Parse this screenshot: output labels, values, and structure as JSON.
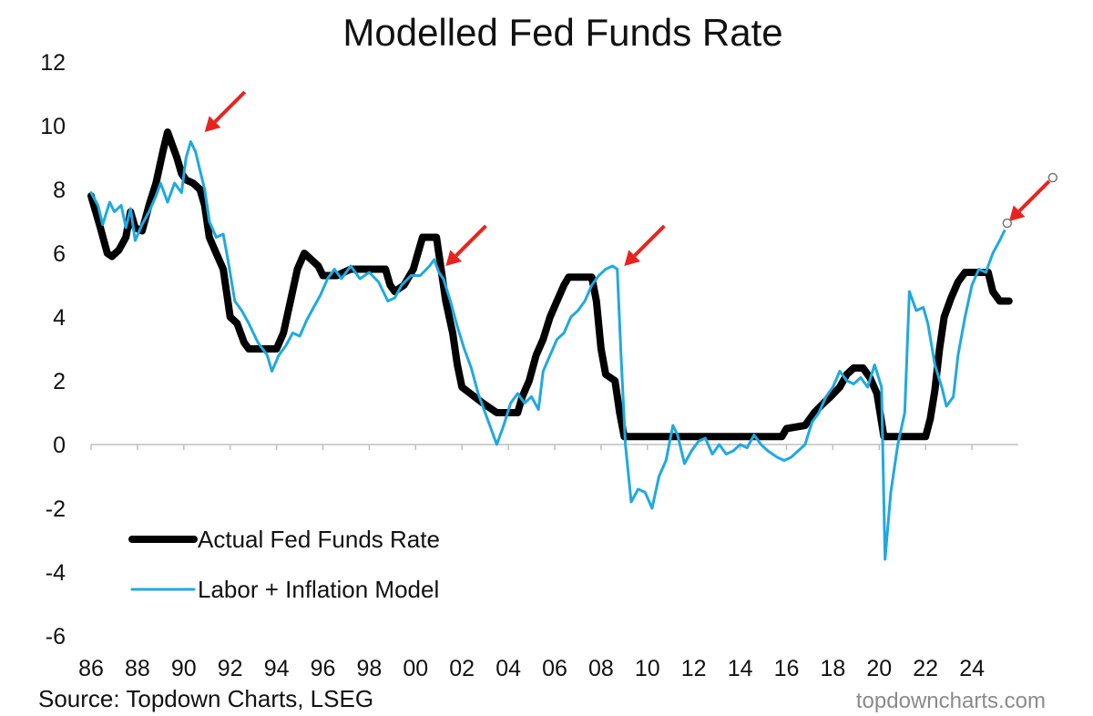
{
  "chart_data": {
    "type": "line",
    "title": "Modelled Fed Funds Rate",
    "xlabel": "",
    "ylabel": "",
    "xlim": [
      1986,
      2026
    ],
    "ylim": [
      -6,
      12
    ],
    "y_ticks": [
      12,
      10,
      8,
      6,
      4,
      2,
      0,
      -2,
      -4,
      -6
    ],
    "x_ticks": [
      {
        "year": 1986,
        "label": "86"
      },
      {
        "year": 1988,
        "label": "88"
      },
      {
        "year": 1990,
        "label": "90"
      },
      {
        "year": 1992,
        "label": "92"
      },
      {
        "year": 1994,
        "label": "94"
      },
      {
        "year": 1996,
        "label": "96"
      },
      {
        "year": 1998,
        "label": "98"
      },
      {
        "year": 2000,
        "label": "00"
      },
      {
        "year": 2002,
        "label": "02"
      },
      {
        "year": 2004,
        "label": "04"
      },
      {
        "year": 2006,
        "label": "06"
      },
      {
        "year": 2008,
        "label": "08"
      },
      {
        "year": 2010,
        "label": "10"
      },
      {
        "year": 2012,
        "label": "12"
      },
      {
        "year": 2014,
        "label": "14"
      },
      {
        "year": 2016,
        "label": "16"
      },
      {
        "year": 2018,
        "label": "18"
      },
      {
        "year": 2020,
        "label": "20"
      },
      {
        "year": 2022,
        "label": "22"
      },
      {
        "year": 2024,
        "label": "24"
      }
    ],
    "grid": false,
    "legend_position": "bottom-left",
    "series": [
      {
        "name": "Actual Fed Funds Rate",
        "color": "#000000",
        "points": [
          [
            1986.0,
            7.8
          ],
          [
            1986.4,
            6.8
          ],
          [
            1986.7,
            6.0
          ],
          [
            1986.9,
            5.9
          ],
          [
            1987.2,
            6.1
          ],
          [
            1987.5,
            6.5
          ],
          [
            1987.7,
            7.3
          ],
          [
            1987.9,
            6.8
          ],
          [
            1988.2,
            6.7
          ],
          [
            1988.5,
            7.5
          ],
          [
            1988.8,
            8.2
          ],
          [
            1989.1,
            9.2
          ],
          [
            1989.3,
            9.8
          ],
          [
            1989.5,
            9.4
          ],
          [
            1989.7,
            9.0
          ],
          [
            1989.9,
            8.5
          ],
          [
            1990.1,
            8.3
          ],
          [
            1990.4,
            8.2
          ],
          [
            1990.7,
            8.0
          ],
          [
            1990.9,
            7.5
          ],
          [
            1991.1,
            6.5
          ],
          [
            1991.4,
            6.0
          ],
          [
            1991.7,
            5.5
          ],
          [
            1992.0,
            4.0
          ],
          [
            1992.3,
            3.8
          ],
          [
            1992.6,
            3.2
          ],
          [
            1992.8,
            3.0
          ],
          [
            1993.5,
            3.0
          ],
          [
            1994.0,
            3.0
          ],
          [
            1994.3,
            3.5
          ],
          [
            1994.6,
            4.5
          ],
          [
            1994.9,
            5.5
          ],
          [
            1995.2,
            6.0
          ],
          [
            1995.5,
            5.8
          ],
          [
            1995.8,
            5.6
          ],
          [
            1996.0,
            5.3
          ],
          [
            1996.6,
            5.3
          ],
          [
            1997.2,
            5.5
          ],
          [
            1998.0,
            5.5
          ],
          [
            1998.7,
            5.5
          ],
          [
            1998.9,
            5.0
          ],
          [
            1999.1,
            4.8
          ],
          [
            1999.5,
            5.0
          ],
          [
            1999.9,
            5.5
          ],
          [
            2000.1,
            6.0
          ],
          [
            2000.3,
            6.5
          ],
          [
            2000.9,
            6.5
          ],
          [
            2001.1,
            5.5
          ],
          [
            2001.3,
            4.5
          ],
          [
            2001.6,
            3.5
          ],
          [
            2001.8,
            2.5
          ],
          [
            2002.0,
            1.8
          ],
          [
            2002.9,
            1.3
          ],
          [
            2003.5,
            1.0
          ],
          [
            2004.4,
            1.0
          ],
          [
            2004.6,
            1.5
          ],
          [
            2004.9,
            2.0
          ],
          [
            2005.2,
            2.8
          ],
          [
            2005.5,
            3.3
          ],
          [
            2005.8,
            4.0
          ],
          [
            2006.1,
            4.5
          ],
          [
            2006.4,
            5.0
          ],
          [
            2006.6,
            5.25
          ],
          [
            2007.6,
            5.25
          ],
          [
            2007.8,
            4.5
          ],
          [
            2008.0,
            3.0
          ],
          [
            2008.2,
            2.2
          ],
          [
            2008.6,
            2.0
          ],
          [
            2008.8,
            1.0
          ],
          [
            2009.0,
            0.25
          ],
          [
            2015.8,
            0.25
          ],
          [
            2016.0,
            0.5
          ],
          [
            2016.8,
            0.6
          ],
          [
            2017.2,
            1.0
          ],
          [
            2017.6,
            1.3
          ],
          [
            2017.9,
            1.5
          ],
          [
            2018.3,
            1.8
          ],
          [
            2018.6,
            2.2
          ],
          [
            2018.9,
            2.4
          ],
          [
            2019.3,
            2.4
          ],
          [
            2019.6,
            2.1
          ],
          [
            2019.9,
            1.6
          ],
          [
            2020.2,
            0.25
          ],
          [
            2022.0,
            0.25
          ],
          [
            2022.2,
            0.8
          ],
          [
            2022.4,
            1.7
          ],
          [
            2022.6,
            3.0
          ],
          [
            2022.8,
            4.0
          ],
          [
            2023.1,
            4.6
          ],
          [
            2023.4,
            5.1
          ],
          [
            2023.7,
            5.4
          ],
          [
            2024.7,
            5.4
          ],
          [
            2024.9,
            4.8
          ],
          [
            2025.2,
            4.5
          ],
          [
            2025.6,
            4.5
          ]
        ]
      },
      {
        "name": "Labor + Inflation Model",
        "color": "#1fa9e1",
        "points": [
          [
            1986.0,
            7.9
          ],
          [
            1986.3,
            7.5
          ],
          [
            1986.5,
            6.9
          ],
          [
            1986.8,
            7.6
          ],
          [
            1987.0,
            7.3
          ],
          [
            1987.3,
            7.5
          ],
          [
            1987.5,
            6.8
          ],
          [
            1987.7,
            7.4
          ],
          [
            1987.9,
            6.4
          ],
          [
            1988.2,
            6.9
          ],
          [
            1988.5,
            7.3
          ],
          [
            1988.8,
            7.8
          ],
          [
            1989.0,
            8.2
          ],
          [
            1989.3,
            7.6
          ],
          [
            1989.6,
            8.2
          ],
          [
            1989.9,
            7.9
          ],
          [
            1990.1,
            9.0
          ],
          [
            1990.3,
            9.5
          ],
          [
            1990.5,
            9.2
          ],
          [
            1990.7,
            8.6
          ],
          [
            1990.9,
            8.0
          ],
          [
            1991.1,
            7.0
          ],
          [
            1991.4,
            6.5
          ],
          [
            1991.7,
            6.6
          ],
          [
            1991.9,
            5.8
          ],
          [
            1992.2,
            4.5
          ],
          [
            1992.5,
            4.2
          ],
          [
            1992.8,
            3.8
          ],
          [
            1993.2,
            3.2
          ],
          [
            1993.6,
            2.8
          ],
          [
            1993.8,
            2.3
          ],
          [
            1994.1,
            2.8
          ],
          [
            1994.4,
            3.1
          ],
          [
            1994.7,
            3.5
          ],
          [
            1995.0,
            3.4
          ],
          [
            1995.3,
            3.9
          ],
          [
            1995.6,
            4.3
          ],
          [
            1995.9,
            4.7
          ],
          [
            1996.2,
            5.2
          ],
          [
            1996.5,
            5.5
          ],
          [
            1996.8,
            5.2
          ],
          [
            1997.2,
            5.6
          ],
          [
            1997.6,
            5.2
          ],
          [
            1998.0,
            5.4
          ],
          [
            1998.4,
            5.1
          ],
          [
            1998.8,
            4.5
          ],
          [
            1999.1,
            4.6
          ],
          [
            1999.4,
            5.0
          ],
          [
            1999.8,
            5.3
          ],
          [
            2000.2,
            5.3
          ],
          [
            2000.6,
            5.6
          ],
          [
            2000.8,
            5.8
          ],
          [
            2001.0,
            5.4
          ],
          [
            2001.2,
            5.2
          ],
          [
            2001.5,
            4.5
          ],
          [
            2001.8,
            3.7
          ],
          [
            2002.1,
            3.0
          ],
          [
            2002.4,
            2.4
          ],
          [
            2002.7,
            1.6
          ],
          [
            2003.0,
            1.0
          ],
          [
            2003.3,
            0.4
          ],
          [
            2003.5,
            0.0
          ],
          [
            2003.8,
            0.6
          ],
          [
            2004.1,
            1.3
          ],
          [
            2004.4,
            1.6
          ],
          [
            2004.7,
            1.3
          ],
          [
            2005.0,
            1.5
          ],
          [
            2005.3,
            1.1
          ],
          [
            2005.5,
            2.3
          ],
          [
            2005.8,
            2.8
          ],
          [
            2006.1,
            3.3
          ],
          [
            2006.4,
            3.5
          ],
          [
            2006.7,
            4.0
          ],
          [
            2007.0,
            4.2
          ],
          [
            2007.3,
            4.5
          ],
          [
            2007.6,
            5.0
          ],
          [
            2007.9,
            5.3
          ],
          [
            2008.2,
            5.5
          ],
          [
            2008.5,
            5.6
          ],
          [
            2008.7,
            5.5
          ],
          [
            2008.85,
            3.0
          ],
          [
            2009.05,
            0.0
          ],
          [
            2009.3,
            -1.8
          ],
          [
            2009.6,
            -1.4
          ],
          [
            2009.9,
            -1.5
          ],
          [
            2010.2,
            -2.0
          ],
          [
            2010.5,
            -1.0
          ],
          [
            2010.8,
            -0.5
          ],
          [
            2011.1,
            0.6
          ],
          [
            2011.3,
            0.3
          ],
          [
            2011.6,
            -0.6
          ],
          [
            2011.9,
            -0.2
          ],
          [
            2012.2,
            0.1
          ],
          [
            2012.5,
            0.2
          ],
          [
            2012.8,
            -0.3
          ],
          [
            2013.1,
            0.0
          ],
          [
            2013.4,
            -0.3
          ],
          [
            2013.7,
            -0.2
          ],
          [
            2014.0,
            0.0
          ],
          [
            2014.3,
            -0.1
          ],
          [
            2014.6,
            0.3
          ],
          [
            2014.9,
            0.0
          ],
          [
            2015.2,
            -0.2
          ],
          [
            2015.6,
            -0.4
          ],
          [
            2015.9,
            -0.5
          ],
          [
            2016.2,
            -0.4
          ],
          [
            2016.5,
            -0.2
          ],
          [
            2016.8,
            0.0
          ],
          [
            2017.1,
            0.7
          ],
          [
            2017.4,
            1.0
          ],
          [
            2017.7,
            1.5
          ],
          [
            2018.0,
            1.8
          ],
          [
            2018.3,
            2.3
          ],
          [
            2018.6,
            2.0
          ],
          [
            2018.9,
            1.9
          ],
          [
            2019.2,
            2.1
          ],
          [
            2019.5,
            1.8
          ],
          [
            2019.8,
            2.5
          ],
          [
            2020.1,
            1.8
          ],
          [
            2020.25,
            -3.6
          ],
          [
            2020.5,
            -1.5
          ],
          [
            2020.8,
            0.0
          ],
          [
            2021.1,
            1.0
          ],
          [
            2021.3,
            4.8
          ],
          [
            2021.6,
            4.2
          ],
          [
            2021.9,
            4.3
          ],
          [
            2022.1,
            3.8
          ],
          [
            2022.4,
            2.5
          ],
          [
            2022.7,
            1.8
          ],
          [
            2022.9,
            1.2
          ],
          [
            2023.2,
            1.5
          ],
          [
            2023.4,
            2.8
          ],
          [
            2023.7,
            4.0
          ],
          [
            2024.0,
            5.0
          ],
          [
            2024.3,
            5.5
          ],
          [
            2024.6,
            5.4
          ],
          [
            2024.9,
            6.0
          ],
          [
            2025.2,
            6.4
          ],
          [
            2025.4,
            6.7
          ]
        ]
      }
    ],
    "legend": [
      {
        "label": "Actual Fed Funds Rate",
        "color": "#000000"
      },
      {
        "label": "Labor + Inflation Model",
        "color": "#1fa9e1"
      }
    ],
    "annotations": {
      "arrow_color": "#e8231d",
      "arrows": [
        {
          "year": 1990.9,
          "value": 9.8
        },
        {
          "year": 2001.3,
          "value": 5.6
        },
        {
          "year": 2009.0,
          "value": 5.6
        },
        {
          "year": 2025.6,
          "value": 7.0
        }
      ]
    }
  },
  "source": "Source: Topdown Charts, LSEG",
  "watermark": "topdowncharts.com"
}
